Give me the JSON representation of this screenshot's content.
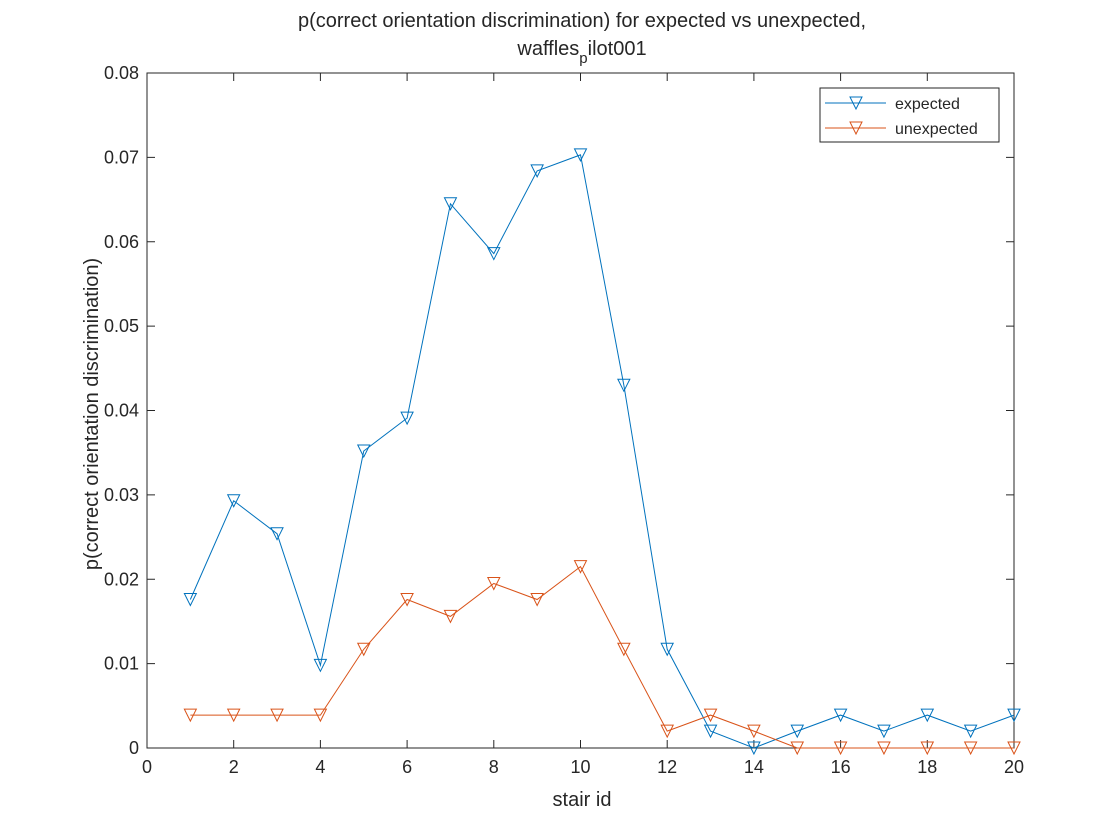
{
  "chart_data": {
    "type": "line",
    "title_line1": "p(correct orientation discrimination) for expected vs unexpected,",
    "title_line2_main": "waffles",
    "title_line2_sub": "p",
    "title_line2_rest": "ilot001",
    "xlabel": "stair id",
    "ylabel": "p(correct orientation discrimination)",
    "xlim": [
      0,
      20
    ],
    "ylim": [
      0,
      0.08
    ],
    "xticks": [
      0,
      2,
      4,
      6,
      8,
      10,
      12,
      14,
      16,
      18,
      20
    ],
    "xtick_labels": [
      "0",
      "2",
      "4",
      "6",
      "8",
      "10",
      "12",
      "14",
      "16",
      "18",
      "20"
    ],
    "yticks": [
      0,
      0.01,
      0.02,
      0.03,
      0.04,
      0.05,
      0.06,
      0.07,
      0.08
    ],
    "ytick_labels": [
      "0",
      "0.01",
      "0.02",
      "0.03",
      "0.04",
      "0.05",
      "0.06",
      "0.07",
      "0.08"
    ],
    "grid": false,
    "legend_position": "top-right",
    "marker": "downward-triangle",
    "x": [
      1,
      2,
      3,
      4,
      5,
      6,
      7,
      8,
      9,
      10,
      11,
      12,
      13,
      14,
      15,
      16,
      17,
      18,
      19,
      20
    ],
    "series": [
      {
        "name": "expected",
        "color": "#0072BD",
        "values": [
          0.0176,
          0.0293,
          0.0254,
          0.0098,
          0.0352,
          0.0391,
          0.0645,
          0.0586,
          0.0684,
          0.0703,
          0.043,
          0.0117,
          0.002,
          0.0,
          0.002,
          0.0039,
          0.002,
          0.0039,
          0.002,
          0.0039
        ]
      },
      {
        "name": "unexpected",
        "color": "#D95319",
        "values": [
          0.0039,
          0.0039,
          0.0039,
          0.0039,
          0.0117,
          0.0176,
          0.0156,
          0.0195,
          0.0176,
          0.0215,
          0.0117,
          0.002,
          0.0039,
          0.002,
          0.0,
          0.0,
          0.0,
          0.0,
          0.0,
          0.0
        ]
      }
    ]
  }
}
